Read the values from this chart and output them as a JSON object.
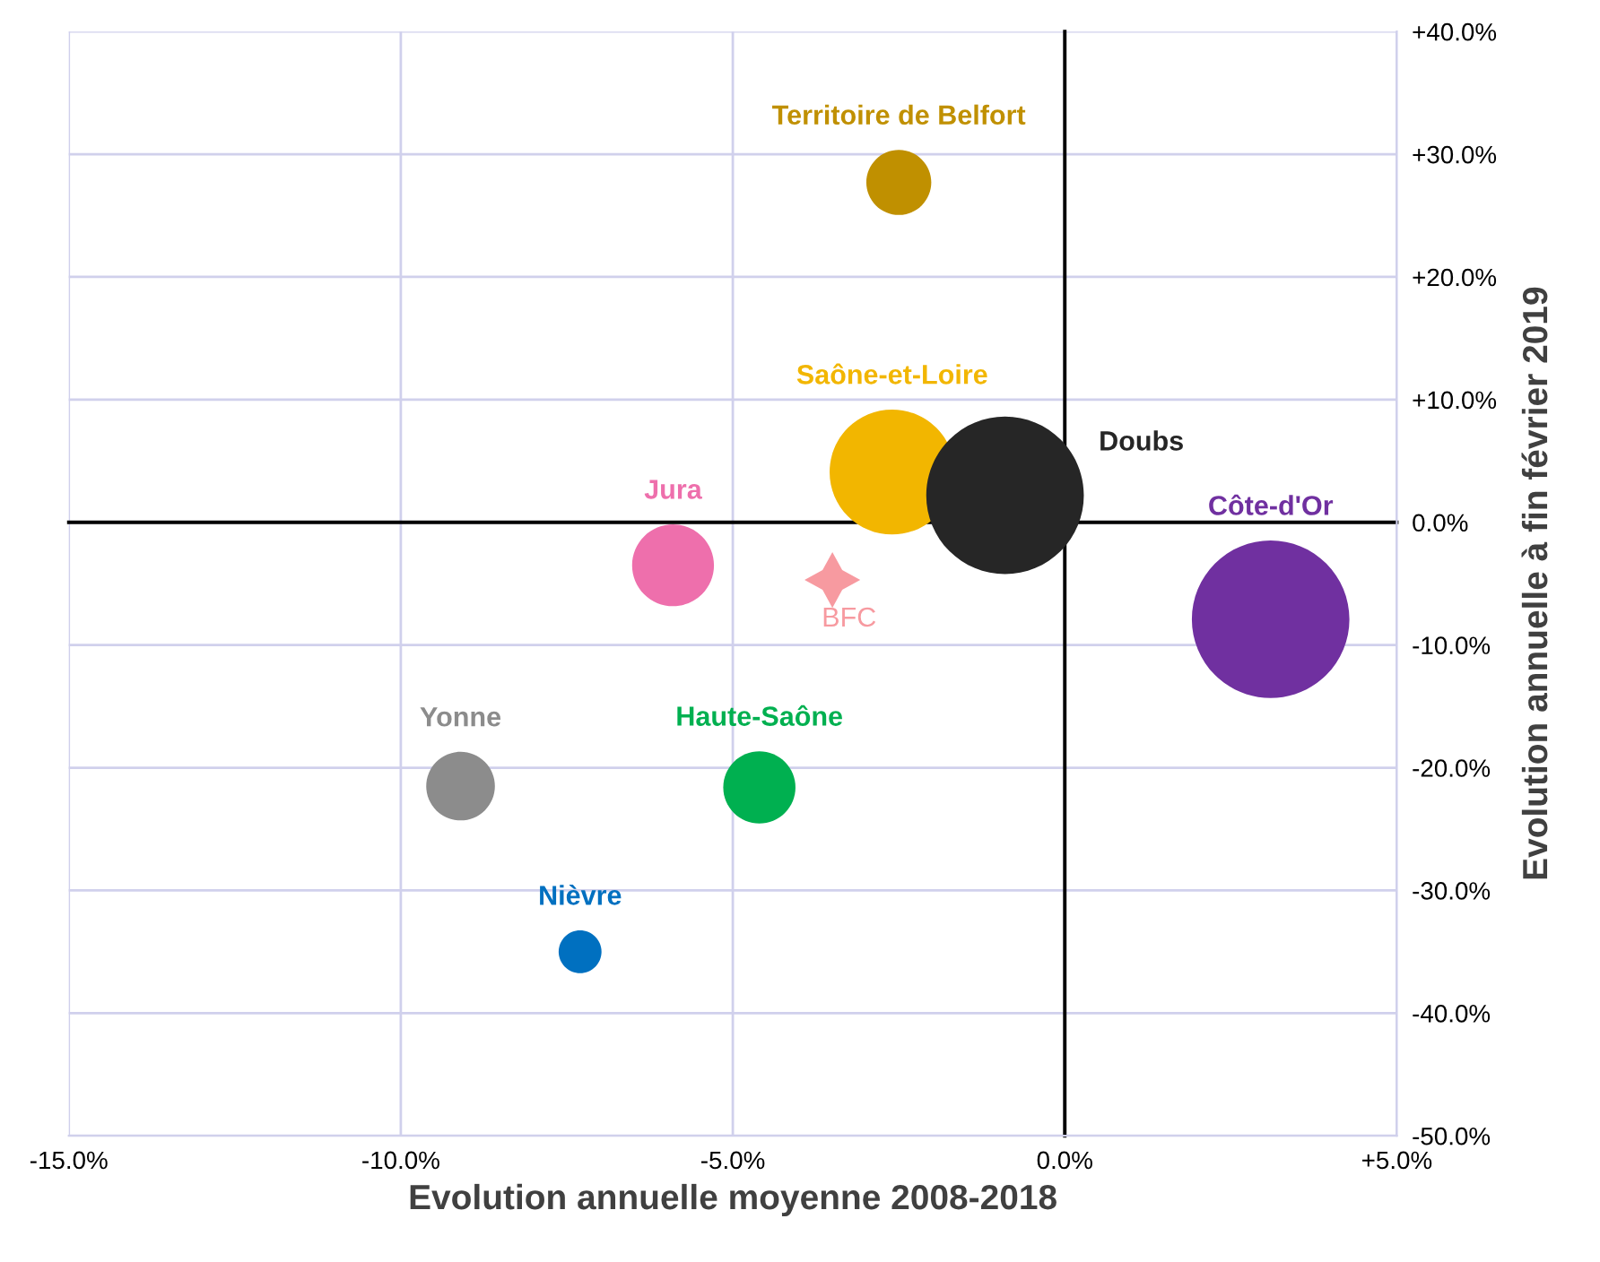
{
  "chart_data": {
    "type": "bubble",
    "xlabel": "Evolution annuelle moyenne 2008-2018",
    "ylabel": "Evolution annuelle à fin février 2019",
    "xlim": [
      -15,
      5
    ],
    "ylim": [
      -50,
      40
    ],
    "xticks": [
      {
        "value": -15,
        "label": "-15.0%"
      },
      {
        "value": -10,
        "label": "-10.0%"
      },
      {
        "value": -5,
        "label": "-5.0%"
      },
      {
        "value": 0,
        "label": "0.0%"
      },
      {
        "value": 5,
        "label": "+5.0%"
      }
    ],
    "yticks": [
      {
        "value": -50,
        "label": "-50.0%"
      },
      {
        "value": -40,
        "label": "-40.0%"
      },
      {
        "value": -30,
        "label": "-30.0%"
      },
      {
        "value": -20,
        "label": "-20.0%"
      },
      {
        "value": -10,
        "label": "-10.0%"
      },
      {
        "value": 0,
        "label": "0.0%"
      },
      {
        "value": 10,
        "label": "+10.0%"
      },
      {
        "value": 20,
        "label": "+20.0%"
      },
      {
        "value": 30,
        "label": "+30.0%"
      },
      {
        "value": 40,
        "label": "+40.0%"
      }
    ],
    "grid": true,
    "series": [
      {
        "name": "Territoire de Belfort",
        "color": "#c09000",
        "x": [
          -2.5
        ],
        "values": [
          27.7
        ],
        "sizes": [
          0.17
        ]
      },
      {
        "name": "Saône-et-Loire",
        "color": "#f2b600",
        "x": [
          -2.6
        ],
        "values": [
          4.1
        ],
        "sizes": [
          0.63
        ]
      },
      {
        "name": "Doubs",
        "color": "#262626",
        "x": [
          -0.9
        ],
        "values": [
          2.2
        ],
        "sizes": [
          1
        ]
      },
      {
        "name": "Côte-d'Or",
        "color": "#7030a0",
        "x": [
          3.1
        ],
        "values": [
          -7.9
        ],
        "sizes": [
          1
        ]
      },
      {
        "name": "Jura",
        "color": "#ee6fac",
        "x": [
          -5.9
        ],
        "values": [
          -3.5
        ],
        "sizes": [
          0.27
        ]
      },
      {
        "name": "BFC",
        "type": "scatter",
        "marker": "star",
        "color": "#f79aa0",
        "x": [
          -3.5
        ],
        "values": [
          -4.7
        ]
      },
      {
        "name": "Yonne",
        "color": "#8c8c8c",
        "x": [
          -9.1
        ],
        "values": [
          -21.5
        ],
        "sizes": [
          0.19
        ]
      },
      {
        "name": "Haute-Saône",
        "color": "#00b050",
        "x": [
          -4.6
        ],
        "values": [
          -21.6
        ],
        "sizes": [
          0.21
        ]
      },
      {
        "name": "Nièvre",
        "color": "#0070c0",
        "x": [
          -7.3
        ],
        "values": [
          -35
        ],
        "sizes": [
          0.074
        ]
      }
    ]
  }
}
